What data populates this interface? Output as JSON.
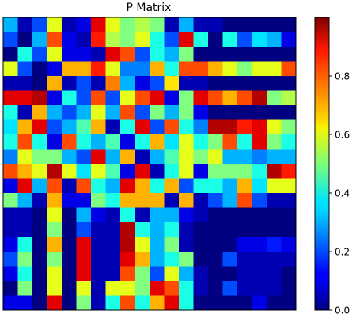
{
  "chart_data": {
    "type": "heatmap",
    "title": "P Matrix",
    "xlabel": "",
    "ylabel": "",
    "colormap": "jet",
    "vmin": 0.0,
    "vmax": 1.0,
    "colorbar": {
      "ticks": [
        0.0,
        0.2,
        0.4,
        0.6,
        0.8
      ],
      "tick_labels": [
        "0.0",
        "0.2",
        "0.4",
        "0.6",
        "0.8"
      ]
    },
    "rows": 20,
    "cols": 20,
    "matrix": [
      [
        0.3,
        0.05,
        0.2,
        0.6,
        0.05,
        0.1,
        0.9,
        0.6,
        0.5,
        0.55,
        0.5,
        0.05,
        0.3,
        0.05,
        0.05,
        0.0,
        0.0,
        0.0,
        0.0,
        0.0
      ],
      [
        0.2,
        0.0,
        0.3,
        0.8,
        0.1,
        0.05,
        0.85,
        0.55,
        0.5,
        0.6,
        0.4,
        0.2,
        0.9,
        0.4,
        0.0,
        0.4,
        0.2,
        0.35,
        0.3,
        0.1
      ],
      [
        0.0,
        0.4,
        0.2,
        0.6,
        0.1,
        0.1,
        0.05,
        0.9,
        0.8,
        0.2,
        0.4,
        0.3,
        0.5,
        0.0,
        0.0,
        0.0,
        0.0,
        0.0,
        0.0,
        0.0
      ],
      [
        0.6,
        0.2,
        0.0,
        0.1,
        0.7,
        0.7,
        0.85,
        0.6,
        0.25,
        0.25,
        0.7,
        0.4,
        0.8,
        0.8,
        0.7,
        0.6,
        0.5,
        0.6,
        0.6,
        0.8
      ],
      [
        0.05,
        0.05,
        0.0,
        0.7,
        0.05,
        0.2,
        0.05,
        0.75,
        0.3,
        0.1,
        0.2,
        0.65,
        0.05,
        0.05,
        0.0,
        0.0,
        0.0,
        0.0,
        0.0,
        0.0
      ],
      [
        0.9,
        0.9,
        0.95,
        0.1,
        0.4,
        0.2,
        0.8,
        0.2,
        0.6,
        0.8,
        0.9,
        0.1,
        0.5,
        0.9,
        0.8,
        0.7,
        0.8,
        0.95,
        0.5,
        0.55
      ],
      [
        0.4,
        0.05,
        0.7,
        0.3,
        0.2,
        0.3,
        0.6,
        0.3,
        0.8,
        0.2,
        0.5,
        0.3,
        0.5,
        0.1,
        0.0,
        0.0,
        0.0,
        0.0,
        0.0,
        0.0
      ],
      [
        0.35,
        0.7,
        0.9,
        0.2,
        0.3,
        0.45,
        0.7,
        0.05,
        0.4,
        0.9,
        0.2,
        0.8,
        0.4,
        0.25,
        0.95,
        0.95,
        0.85,
        0.9,
        0.6,
        0.5
      ],
      [
        0.4,
        0.8,
        0.4,
        0.1,
        0.8,
        0.4,
        0.3,
        0.45,
        0.1,
        0.4,
        0.7,
        0.35,
        0.6,
        0.4,
        0.5,
        0.8,
        0.4,
        0.9,
        0.5,
        0.4
      ],
      [
        0.25,
        0.6,
        0.5,
        0.5,
        0.3,
        0.2,
        0.9,
        0.3,
        0.7,
        0.05,
        0.3,
        0.45,
        0.6,
        0.5,
        0.6,
        0.3,
        0.3,
        0.25,
        0.3,
        0.3
      ],
      [
        0.8,
        0.7,
        0.6,
        0.95,
        0.6,
        0.35,
        0.6,
        0.45,
        0.1,
        0.9,
        0.05,
        0.4,
        0.6,
        0.1,
        0.5,
        0.5,
        0.5,
        0.4,
        0.95,
        0.85
      ],
      [
        0.1,
        0.9,
        0.3,
        0.8,
        0.05,
        0.8,
        0.4,
        0.3,
        0.9,
        0.7,
        0.4,
        0.7,
        0.2,
        0.4,
        0.4,
        0.3,
        0.7,
        0.35,
        0.6,
        0.6
      ],
      [
        0.5,
        0.3,
        0.05,
        0.7,
        0.1,
        0.1,
        0.5,
        0.4,
        0.7,
        0.7,
        0.7,
        0.05,
        0.7,
        0.05,
        0.2,
        0.3,
        0.8,
        0.2,
        0.05,
        0.05
      ],
      [
        0.05,
        0.05,
        0.0,
        0.6,
        0.0,
        0.3,
        0.1,
        0.05,
        0.4,
        0.05,
        0.3,
        0.3,
        0.1,
        0.05,
        0.0,
        0.0,
        0.0,
        0.0,
        0.0,
        0.0
      ],
      [
        0.05,
        0.05,
        0.0,
        0.5,
        0.0,
        0.2,
        0.05,
        0.05,
        0.95,
        0.4,
        0.3,
        0.4,
        0.05,
        0.0,
        0.0,
        0.0,
        0.0,
        0.0,
        0.0,
        0.0
      ],
      [
        0.1,
        0.4,
        0.0,
        0.7,
        0.0,
        0.9,
        0.05,
        0.05,
        0.95,
        0.6,
        0.3,
        0.5,
        0.05,
        0.0,
        0.0,
        0.0,
        0.1,
        0.1,
        0.15,
        0.1
      ],
      [
        0.2,
        0.5,
        0.0,
        0.5,
        0.0,
        0.9,
        0.05,
        0.05,
        0.9,
        0.7,
        0.3,
        0.4,
        0.5,
        0.0,
        0.0,
        0.2,
        0.05,
        0.05,
        0.05,
        0.05
      ],
      [
        0.1,
        0.4,
        0.0,
        0.6,
        0.0,
        0.9,
        0.05,
        0.05,
        0.8,
        0.5,
        0.2,
        0.6,
        0.3,
        0.05,
        0.0,
        0.0,
        0.05,
        0.05,
        0.05,
        0.0
      ],
      [
        0.0,
        0.5,
        0.0,
        0.6,
        0.0,
        0.6,
        0.05,
        0.6,
        0.6,
        0.5,
        0.9,
        0.8,
        0.4,
        0.05,
        0.0,
        0.2,
        0.05,
        0.05,
        0.05,
        0.0
      ],
      [
        0.1,
        0.1,
        0.0,
        0.9,
        0.0,
        0.5,
        0.05,
        0.4,
        0.8,
        0.4,
        0.7,
        0.9,
        0.4,
        0.0,
        0.0,
        0.0,
        0.0,
        0.1,
        0.0,
        0.0
      ]
    ]
  }
}
